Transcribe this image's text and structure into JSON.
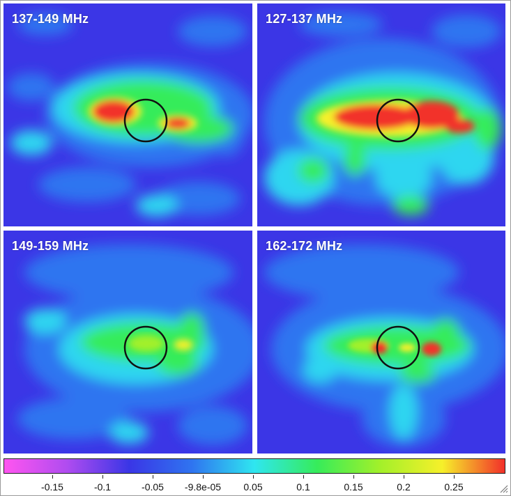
{
  "panels": [
    {
      "id": "p1",
      "label": "137-149 MHz"
    },
    {
      "id": "p2",
      "label": "127-137 MHz"
    },
    {
      "id": "p3",
      "label": "149-159 MHz"
    },
    {
      "id": "p4",
      "label": "162-172 MHz"
    }
  ],
  "colorbar": {
    "ticks": [
      "-0.15",
      "-0.1",
      "-0.05",
      "-9.8e-05",
      "0.05",
      "0.1",
      "0.15",
      "0.2",
      "0.25"
    ],
    "colors": [
      "#ff55f0",
      "#b04cf0",
      "#3a36e6",
      "#2f74f0",
      "#2fe6f0",
      "#36ec5a",
      "#a2f02a",
      "#f6f02a",
      "#f2302a"
    ]
  },
  "icons": {
    "resize": "resize-grip-icon"
  }
}
